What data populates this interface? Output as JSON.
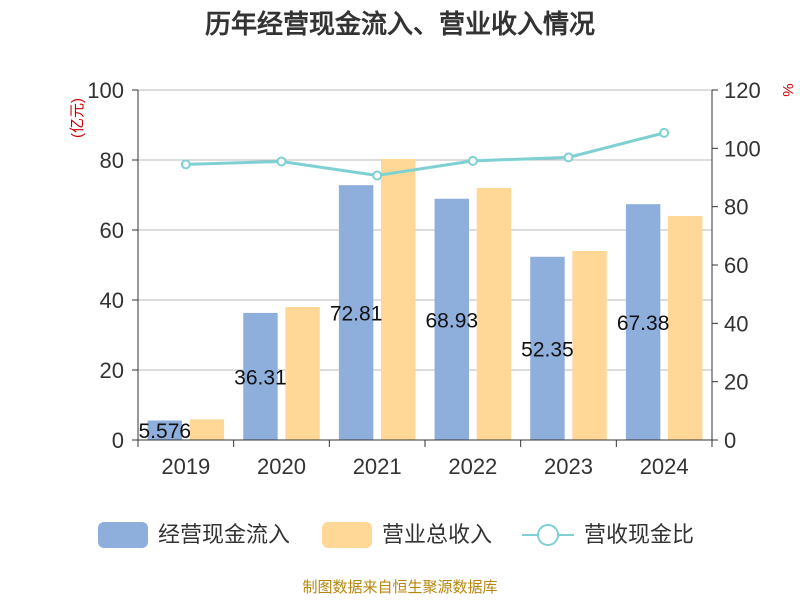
{
  "chart_data": {
    "type": "bar",
    "title": "历年经营现金流入、营业收入情况",
    "left_axis_unit": "(亿元)",
    "right_axis_unit": "%",
    "categories": [
      "2019",
      "2020",
      "2021",
      "2022",
      "2023",
      "2024"
    ],
    "series": [
      {
        "name": "经营现金流入",
        "type": "bar",
        "axis": "left",
        "color": "#8eaedb",
        "values": [
          5.576,
          36.31,
          72.81,
          68.93,
          52.35,
          67.38
        ],
        "data_labels": [
          "5.576",
          "36.31",
          "72.81",
          "68.93",
          "52.35",
          "67.38"
        ]
      },
      {
        "name": "营业总收入",
        "type": "bar",
        "axis": "left",
        "color": "#ffd898",
        "values": [
          5.9,
          38.0,
          80.3,
          72.0,
          54.0,
          64.0
        ]
      },
      {
        "name": "营收现金比",
        "type": "line",
        "axis": "right",
        "color": "#7fd0d2",
        "values": [
          94.5,
          95.5,
          90.7,
          95.7,
          96.9,
          105.3
        ]
      }
    ],
    "left_axis": {
      "min": 0,
      "max": 100,
      "ticks": [
        "0",
        "20",
        "40",
        "60",
        "80",
        "100"
      ]
    },
    "right_axis": {
      "min": 0,
      "max": 120,
      "ticks": [
        "0",
        "20",
        "40",
        "60",
        "80",
        "100",
        "120"
      ]
    },
    "grid": true,
    "legend_position": "bottom"
  },
  "source_text": "制图数据来自恒生聚源数据库"
}
